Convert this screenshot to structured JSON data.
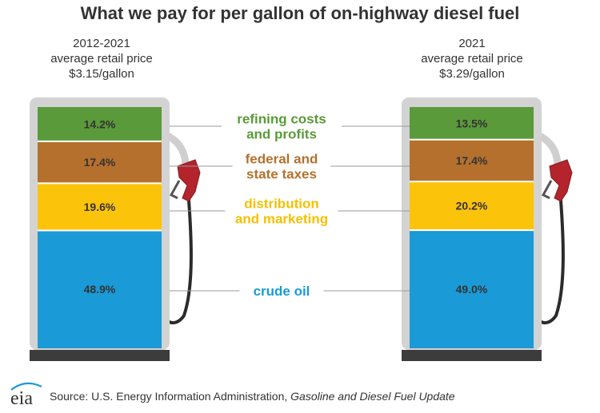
{
  "chart_data": {
    "type": "bar",
    "title": "What we pay for per gallon of on-highway diesel fuel",
    "components": [
      {
        "key": "refining",
        "label_lines": [
          "refining costs",
          "and profits"
        ],
        "color": "#5a9a3a",
        "label_color": "#5a9a3a"
      },
      {
        "key": "taxes",
        "label_lines": [
          "federal and",
          "state taxes"
        ],
        "color": "#b5702d",
        "label_color": "#b5702d"
      },
      {
        "key": "distribution",
        "label_lines": [
          "distribution",
          "and marketing"
        ],
        "color": "#fcc30b",
        "label_color": "#f5c000"
      },
      {
        "key": "crude",
        "label_lines": [
          "crude oil"
        ],
        "color": "#1a9ad7",
        "label_color": "#1a9ad7"
      }
    ],
    "series": [
      {
        "caption": [
          "2012-2021",
          "average retail price",
          "$3.15/gallon"
        ],
        "values": [
          14.2,
          17.4,
          19.6,
          48.9
        ],
        "value_labels": [
          "14.2%",
          "17.4%",
          "19.6%",
          "48.9%"
        ]
      },
      {
        "caption": [
          "2021",
          "average retail price",
          "$3.29/gallon"
        ],
        "values": [
          13.5,
          17.4,
          20.2,
          49.0
        ],
        "value_labels": [
          "13.5%",
          "17.4%",
          "20.2%",
          "49.0%"
        ]
      }
    ],
    "unit": "%"
  },
  "source": {
    "prefix": "Source: U.S. Energy Information Administration, ",
    "publication": "Gasoline and Diesel Fuel Update"
  },
  "logo_text": "eia"
}
